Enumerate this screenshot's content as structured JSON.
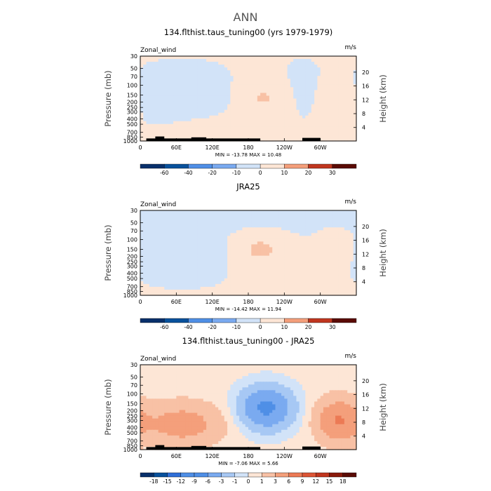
{
  "figure": {
    "title": "ANN"
  },
  "colors": {
    "cool_scale": [
      "#08306b",
      "#08519c",
      "#2f6fd8",
      "#4f8fe6",
      "#7aaaf0",
      "#a7c8f4",
      "#d2e3f8"
    ],
    "warm_scale": [
      "#fde6d6",
      "#f8c1a5",
      "#f49f7b",
      "#ec7a55",
      "#dc5535",
      "#c0361f",
      "#8a1a0b",
      "#5a0b04"
    ],
    "terrain": "#000000",
    "frame": "#000000"
  },
  "chart_data": [
    {
      "type": "heatmap",
      "title": "134.flthist.taus_tuning00 (yrs 1979-1979)",
      "field_label": "Zonal_wind",
      "units": "m/s",
      "xlabel": "",
      "ylabel": "Pressure (mb)",
      "y2label": "Height (km)",
      "x_ticks": [
        "0",
        "60E",
        "120E",
        "180",
        "120W",
        "60W"
      ],
      "y_ticks": [
        "30",
        "50",
        "70",
        "100",
        "150",
        "200",
        "250",
        "300",
        "400",
        "500",
        "700",
        "850",
        "1000"
      ],
      "y2_ticks": [
        "20",
        "16",
        "12",
        "8",
        "4"
      ],
      "stats": "MIN = -13.78  MAX = 10.48",
      "min": -13.78,
      "max": 10.48,
      "cbar_levels": [
        -60,
        -40,
        -20,
        -10,
        0,
        10,
        20,
        30
      ],
      "cbar_labels": [
        "-60",
        "-40",
        "-20",
        "-10",
        "0",
        "10",
        "20",
        "30"
      ],
      "terrain": true,
      "features": [
        {
          "kind": "jet",
          "center_lon": 205,
          "center_p": 170,
          "width_deg": 55,
          "value": 10.5
        },
        {
          "kind": "jet",
          "center_lon": 328,
          "center_p": 170,
          "width_deg": 40,
          "value": 8.0
        },
        {
          "kind": "easterly",
          "center_lon": 70,
          "center_p": 150,
          "width_deg": 90,
          "value": -8.0
        },
        {
          "kind": "easterly",
          "center_lon": 270,
          "center_p": 120,
          "width_deg": 40,
          "value": -3.0
        },
        {
          "kind": "westerly",
          "center_lon": 110,
          "center_p": 800,
          "width_deg": 90,
          "value": 3.0
        }
      ]
    },
    {
      "type": "heatmap",
      "title": "JRA25",
      "field_label": "Zonal_wind",
      "units": "m/s",
      "xlabel": "",
      "ylabel": "Pressure (mb)",
      "y2label": "Height (km)",
      "x_ticks": [
        "0",
        "60E",
        "120E",
        "180",
        "120W",
        "60W"
      ],
      "y_ticks": [
        "30",
        "50",
        "70",
        "100",
        "150",
        "200",
        "250",
        "300",
        "400",
        "500",
        "700",
        "850",
        "1000"
      ],
      "y2_ticks": [
        "20",
        "16",
        "12",
        "8",
        "4"
      ],
      "stats": "MIN = -14.42  MAX = 11.94",
      "min": -14.42,
      "max": 11.94,
      "cbar_levels": [
        -60,
        -40,
        -20,
        -10,
        0,
        10,
        20,
        30
      ],
      "cbar_labels": [
        "-60",
        "-40",
        "-20",
        "-10",
        "0",
        "10",
        "20",
        "30"
      ],
      "terrain": false,
      "features": [
        {
          "kind": "jet",
          "center_lon": 200,
          "center_p": 150,
          "width_deg": 60,
          "value": 11.9
        },
        {
          "kind": "jet",
          "center_lon": 325,
          "center_p": 140,
          "width_deg": 40,
          "value": 6.0
        },
        {
          "kind": "easterly",
          "center_lon": 70,
          "center_p": 170,
          "width_deg": 90,
          "value": -8.0
        },
        {
          "kind": "easterly",
          "center_lon": 180,
          "center_p": 30,
          "width_deg": 360,
          "value": -4.0
        }
      ]
    },
    {
      "type": "heatmap",
      "title": "134.flthist.taus_tuning00 - JRA25",
      "field_label": "Zonal_wind",
      "units": "m/s",
      "xlabel": "",
      "ylabel": "Pressure (mb)",
      "y2label": "Height (km)",
      "x_ticks": [
        "0",
        "60E",
        "120E",
        "180",
        "120W",
        "60W"
      ],
      "y_ticks": [
        "30",
        "50",
        "70",
        "100",
        "150",
        "200",
        "250",
        "300",
        "400",
        "500",
        "700",
        "850",
        "1000"
      ],
      "y2_ticks": [
        "20",
        "16",
        "12",
        "8",
        "4"
      ],
      "stats": "MIN = -7.06  MAX = 5.66",
      "min": -7.06,
      "max": 5.66,
      "cbar_levels": [
        -18,
        -15,
        -12,
        -9,
        -6,
        -3,
        -1,
        0,
        1,
        3,
        6,
        9,
        12,
        15,
        18
      ],
      "cbar_labels": [
        "-18",
        "-15",
        "-12",
        "-9",
        "-6",
        "-3",
        "-1",
        "0",
        "1",
        "3",
        "6",
        "9",
        "12",
        "15",
        "18"
      ],
      "terrain": true,
      "features": [
        {
          "kind": "easterly",
          "center_lon": 210,
          "center_p": 180,
          "width_deg": 60,
          "value": -7.06
        },
        {
          "kind": "westerly",
          "center_lon": 70,
          "center_p": 350,
          "width_deg": 90,
          "value": 4.0
        },
        {
          "kind": "westerly",
          "center_lon": 330,
          "center_p": 300,
          "width_deg": 50,
          "value": 5.66
        }
      ]
    }
  ]
}
